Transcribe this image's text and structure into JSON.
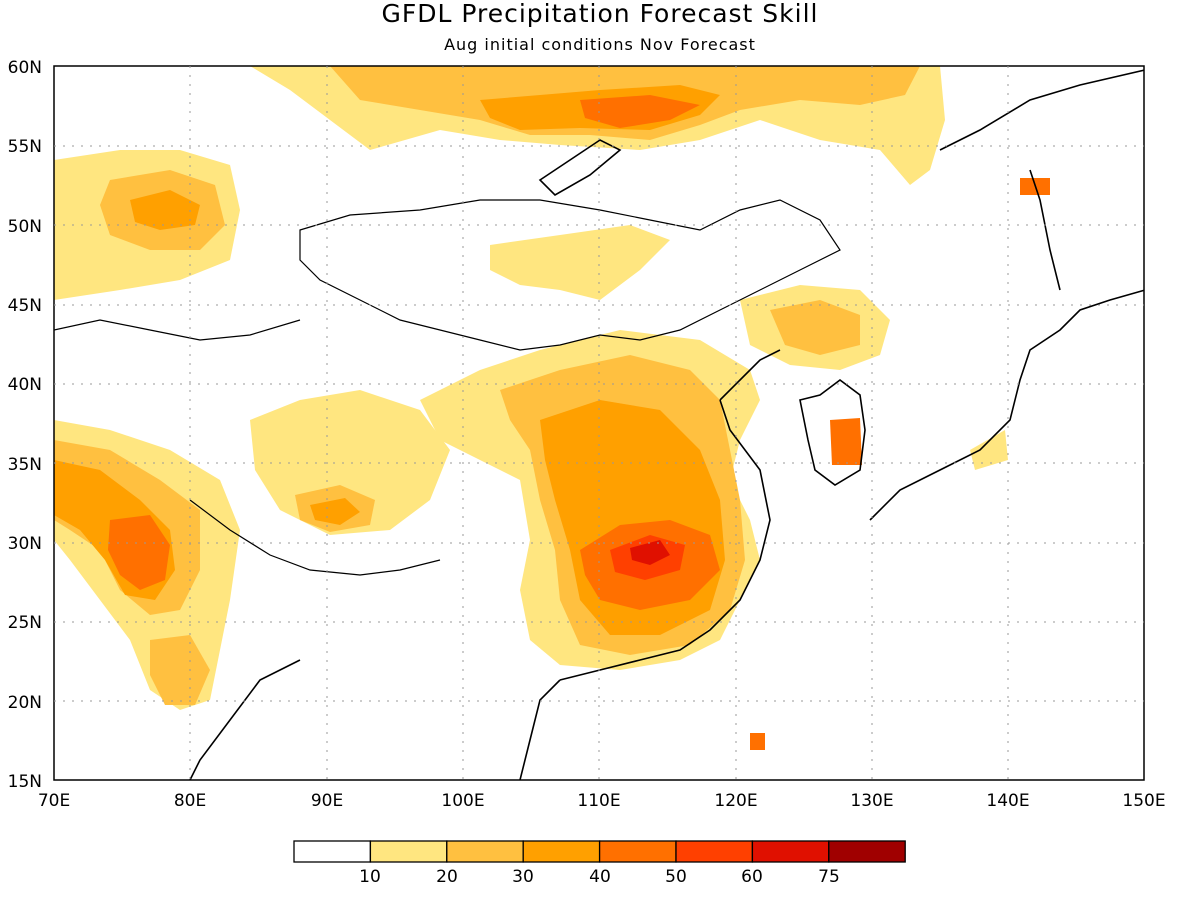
{
  "title": "GFDL Precipitation Forecast Skill",
  "subtitle": "Aug initial conditions  Nov Forecast",
  "axes": {
    "x_ticks": [
      "70E",
      "80E",
      "90E",
      "100E",
      "110E",
      "120E",
      "130E",
      "140E",
      "150E"
    ],
    "y_ticks": [
      "60N",
      "55N",
      "50N",
      "45N",
      "40N",
      "35N",
      "30N",
      "25N",
      "20N",
      "15N"
    ]
  },
  "legend": {
    "labels": [
      "10",
      "20",
      "30",
      "40",
      "50",
      "60",
      "75"
    ],
    "colors": [
      "#ffffff",
      "#ffe680",
      "#ffc040",
      "#ffa000",
      "#ff7000",
      "#ff4000",
      "#e01000",
      "#a00000"
    ]
  },
  "palette": {
    "c10": "#ffe680",
    "c20": "#ffc040",
    "c30": "#ffa000",
    "c40": "#ff7000",
    "c50": "#ff4000",
    "c60": "#e01000"
  }
}
